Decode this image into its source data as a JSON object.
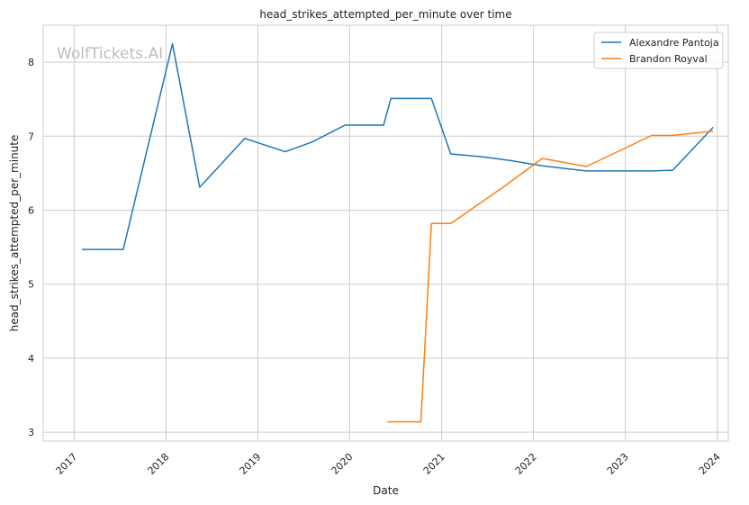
{
  "chart_data": {
    "type": "line",
    "title": "head_strikes_attempted_per_minute over time",
    "xlabel": "Date",
    "ylabel": "head_strikes_attempted_per_minute",
    "watermark": "WolfTickets.AI",
    "x_ticks": [
      "2017",
      "2018",
      "2019",
      "2020",
      "2021",
      "2022",
      "2023",
      "2024"
    ],
    "y_ticks": [
      3,
      4,
      5,
      6,
      7,
      8
    ],
    "xlim": [
      "2016-08-31",
      "2024-02-14"
    ],
    "ylim": [
      2.88,
      8.5
    ],
    "grid": true,
    "legend_position": "top-right",
    "series": [
      {
        "name": "Alexandre Pantoja",
        "color": "#1f77b4",
        "points": [
          [
            "2017-02-01",
            5.47
          ],
          [
            "2017-07-15",
            5.47
          ],
          [
            "2018-01-27",
            8.25
          ],
          [
            "2018-05-15",
            6.31
          ],
          [
            "2018-11-10",
            6.97
          ],
          [
            "2019-04-20",
            6.79
          ],
          [
            "2019-08-03",
            6.92
          ],
          [
            "2019-12-14",
            7.15
          ],
          [
            "2020-05-15",
            7.15
          ],
          [
            "2020-06-13",
            7.51
          ],
          [
            "2020-11-21",
            7.51
          ],
          [
            "2021-02-06",
            6.76
          ],
          [
            "2021-06-12",
            6.72
          ],
          [
            "2021-10-02",
            6.67
          ],
          [
            "2022-02-05",
            6.6
          ],
          [
            "2022-07-30",
            6.53
          ],
          [
            "2023-04-15",
            6.53
          ],
          [
            "2023-07-08",
            6.54
          ],
          [
            "2023-12-16",
            7.12
          ]
        ]
      },
      {
        "name": "Brandon Royval",
        "color": "#ff7f0e",
        "points": [
          [
            "2020-05-30",
            3.14
          ],
          [
            "2020-10-10",
            3.14
          ],
          [
            "2020-11-21",
            5.82
          ],
          [
            "2021-02-06",
            5.82
          ],
          [
            "2021-08-28",
            6.3
          ],
          [
            "2022-02-05",
            6.7
          ],
          [
            "2022-07-30",
            6.59
          ],
          [
            "2023-04-15",
            7.01
          ],
          [
            "2023-07-08",
            7.01
          ],
          [
            "2023-12-16",
            7.07
          ]
        ]
      }
    ]
  }
}
